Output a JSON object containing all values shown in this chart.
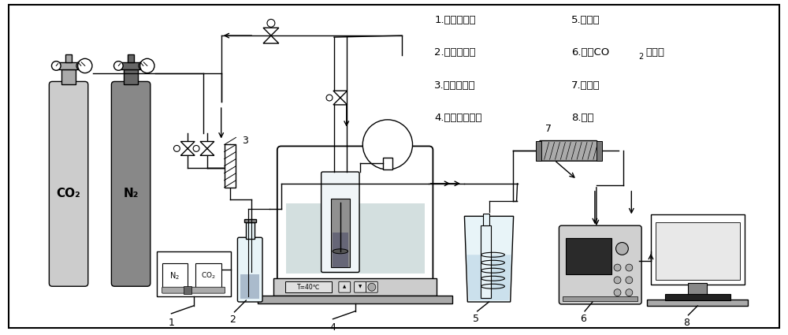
{
  "bg_color": "#ffffff",
  "legend_items_col1": [
    "1.流量控制器",
    "2.水饱和装置",
    "3.气体混合器",
    "4.恒温水浴装置"
  ],
  "legend_items_col2": [
    "5.冷凝器",
    "6.红外CO₂分析仪",
    "7.干燥管",
    "8.电脑"
  ],
  "co2_label": "CO₂",
  "n2_label": "N₂",
  "temp_label": "T=40℃"
}
